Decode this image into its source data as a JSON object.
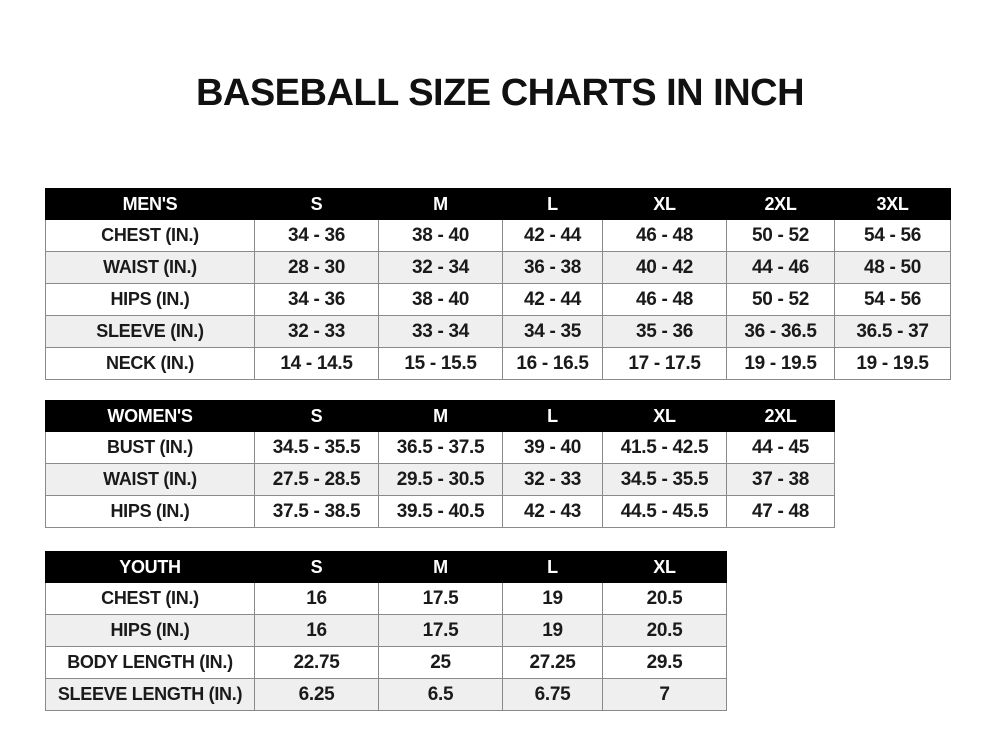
{
  "title": "BASEBALL SIZE CHARTS IN INCH",
  "tables": [
    {
      "id": "men",
      "headers": [
        "MEN'S",
        "S",
        "M",
        "L",
        "XL",
        "2XL",
        "3XL"
      ],
      "rows": [
        [
          "CHEST (IN.)",
          "34 - 36",
          "38 - 40",
          "42 - 44",
          "46 - 48",
          "50 - 52",
          "54 - 56"
        ],
        [
          "WAIST (IN.)",
          "28 - 30",
          "32 - 34",
          "36 - 38",
          "40 - 42",
          "44 - 46",
          "48 - 50"
        ],
        [
          "HIPS (IN.)",
          "34 - 36",
          "38 - 40",
          "42 - 44",
          "46 - 48",
          "50 - 52",
          "54 - 56"
        ],
        [
          "SLEEVE (IN.)",
          "32 - 33",
          "33 - 34",
          "34 - 35",
          "35 - 36",
          "36 - 36.5",
          "36.5 - 37"
        ],
        [
          "NECK (IN.)",
          "14 - 14.5",
          "15 - 15.5",
          "16 - 16.5",
          "17 - 17.5",
          "19 - 19.5",
          "19 - 19.5"
        ]
      ]
    },
    {
      "id": "women",
      "headers": [
        "WOMEN'S",
        "S",
        "M",
        "L",
        "XL",
        "2XL"
      ],
      "rows": [
        [
          "BUST (IN.)",
          "34.5 - 35.5",
          "36.5 - 37.5",
          "39 - 40",
          "41.5 - 42.5",
          "44 - 45"
        ],
        [
          "WAIST (IN.)",
          "27.5 - 28.5",
          "29.5 - 30.5",
          "32 - 33",
          "34.5 - 35.5",
          "37 - 38"
        ],
        [
          "HIPS (IN.)",
          "37.5 - 38.5",
          "39.5 - 40.5",
          "42 - 43",
          "44.5 - 45.5",
          "47 - 48"
        ]
      ]
    },
    {
      "id": "youth",
      "headers": [
        "YOUTH",
        "S",
        "M",
        "L",
        "XL"
      ],
      "rows": [
        [
          "CHEST (IN.)",
          "16",
          "17.5",
          "19",
          "20.5"
        ],
        [
          "HIPS (IN.)",
          "16",
          "17.5",
          "19",
          "20.5"
        ],
        [
          "BODY LENGTH (IN.)",
          "22.75",
          "25",
          "27.25",
          "29.5"
        ],
        [
          "SLEEVE LENGTH (IN.)",
          "6.25",
          "6.5",
          "6.75",
          "7"
        ]
      ]
    }
  ]
}
